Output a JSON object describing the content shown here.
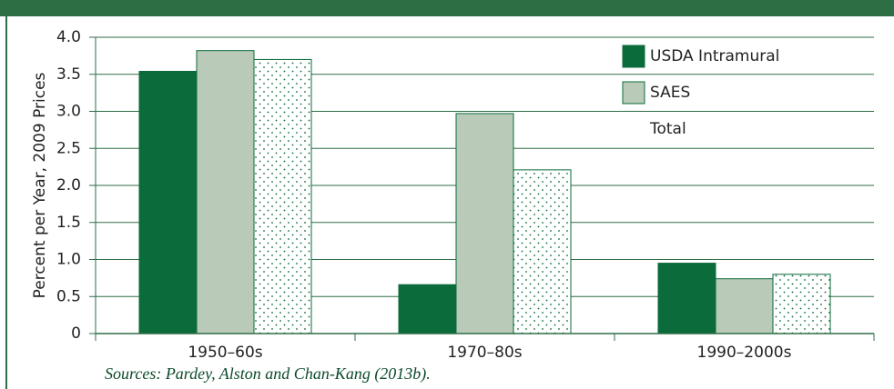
{
  "chart_data": {
    "type": "bar",
    "y_label": "Percent per Year, 2009 Prices",
    "source": "Sources: Pardey, Alston and Chan-Kang (2013b).",
    "categories": [
      "1950–60s",
      "1970–80s",
      "1990–2000s"
    ],
    "series": [
      {
        "name": "USDA Intramural",
        "color": "#0b6b3a",
        "values": [
          3.54,
          0.66,
          0.95
        ]
      },
      {
        "name": "SAES",
        "color": "#b9cbb8",
        "values": [
          3.82,
          2.97,
          0.74
        ]
      },
      {
        "name": "Total",
        "color": "#ffffff",
        "hatch": "dots",
        "values": [
          3.7,
          2.21,
          0.8
        ]
      }
    ],
    "ylim": [
      0,
      4
    ],
    "yticks": [
      0,
      {
        "value": 0.5,
        "label": "0.5"
      },
      {
        "value": 1,
        "label": "1.0"
      },
      {
        "value": 1.5,
        "label": "1.5"
      },
      {
        "value": 2,
        "label": "2.0"
      },
      {
        "value": 2.5,
        "label": "2.5"
      },
      {
        "value": 3,
        "label": "3.0"
      },
      {
        "value": 3.5,
        "label": "3.5"
      },
      {
        "value": 4,
        "label": "4.0"
      }
    ],
    "grid": true,
    "legend": "top-right"
  }
}
